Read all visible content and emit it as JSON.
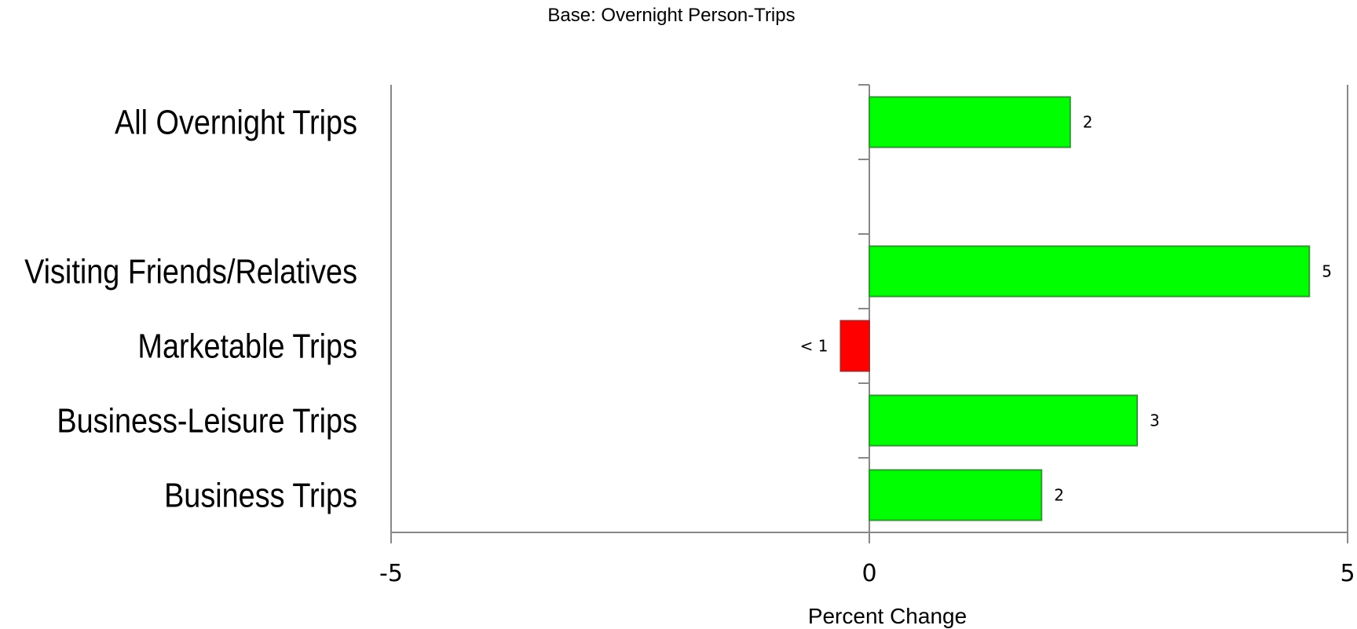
{
  "chart_data": {
    "type": "bar",
    "orientation": "horizontal",
    "subtitle": "Base: Overnight Person-Trips",
    "xlabel": "Percent Change",
    "ylabel": "",
    "xlim": [
      -5,
      5
    ],
    "x_ticks": [
      "-5",
      "0",
      "5"
    ],
    "grid": false,
    "categories": [
      "All Overnight Trips",
      "",
      "Visiting Friends/Relatives",
      "Marketable Trips",
      "Business-Leisure Trips",
      "Business Trips"
    ],
    "values": [
      2.1,
      null,
      4.6,
      -0.3,
      2.8,
      1.8
    ],
    "data_labels": [
      "2",
      "",
      "5",
      "< 1",
      "3",
      "2"
    ],
    "colors": {
      "positive": "#00ff00",
      "positive_border": "#2e9a2e",
      "negative": "#ff0000",
      "negative_border": "#b22222",
      "axis": "#888888"
    }
  }
}
